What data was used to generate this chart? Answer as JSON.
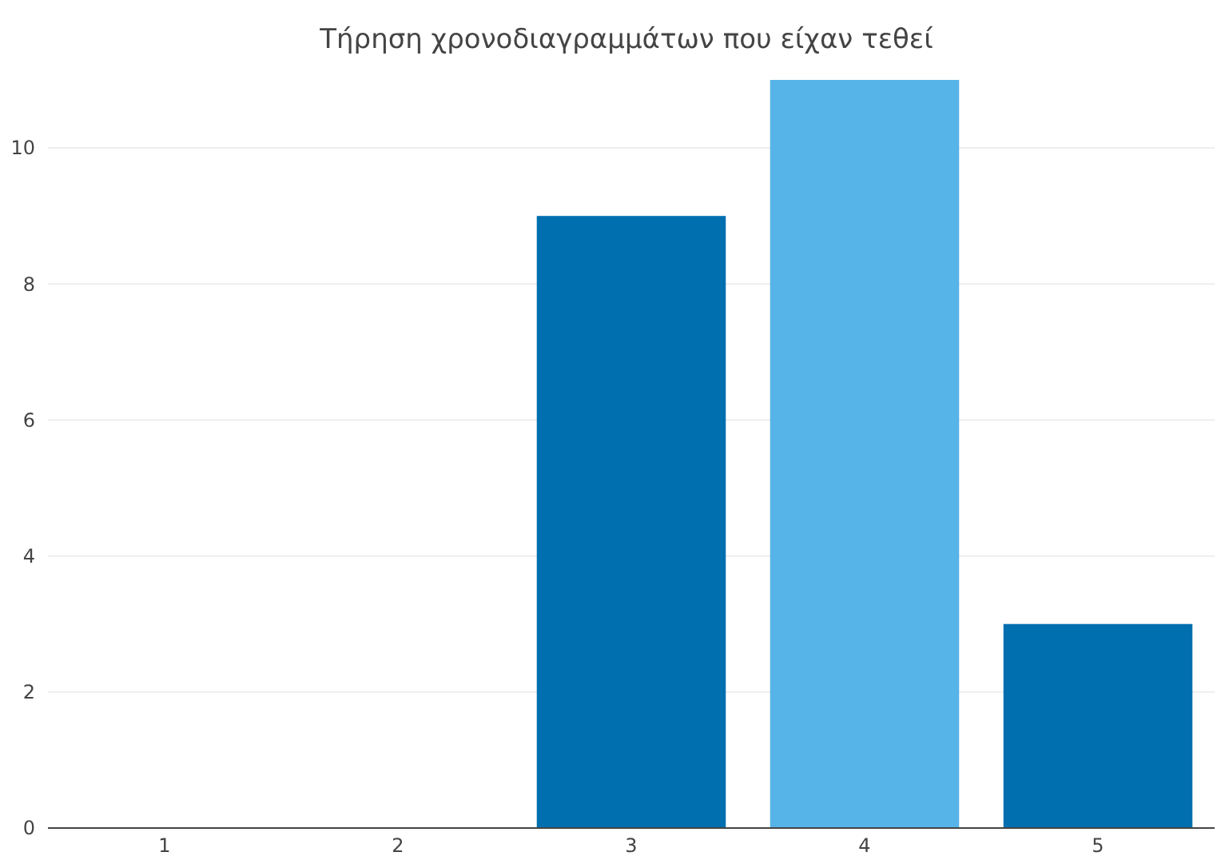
{
  "chart_data": {
    "type": "bar",
    "title": "Τήρηση χρονοδιαγραμμάτων που είχαν τεθεί",
    "categories": [
      "1",
      "2",
      "3",
      "4",
      "5"
    ],
    "values": [
      0,
      0,
      9,
      11,
      3
    ],
    "colors": [
      "#006fb0",
      "#006fb0",
      "#006fb0",
      "#56b4e8",
      "#006fb0"
    ],
    "ylim": [
      0,
      11
    ],
    "yticks": [
      0,
      2,
      4,
      6,
      8,
      10
    ],
    "grid": "y"
  }
}
